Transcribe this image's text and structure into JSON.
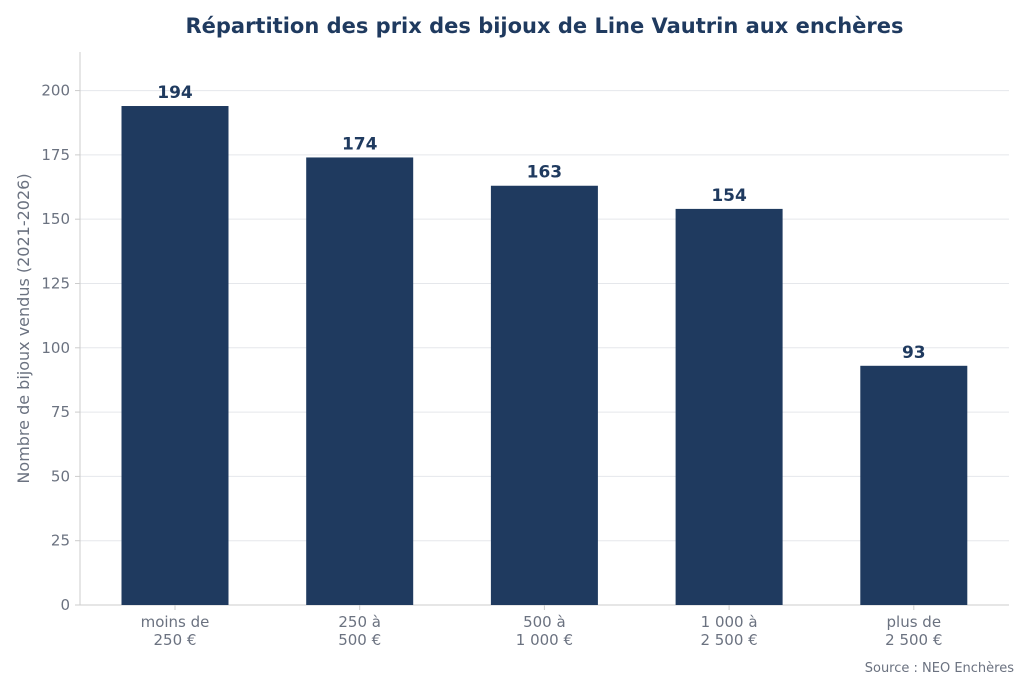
{
  "chart_data": {
    "type": "bar",
    "title": "Répartition des prix des bijoux de Line Vautrin aux enchères",
    "xlabel": "",
    "ylabel": "Nombre de bijoux vendus (2021-2026)",
    "categories": [
      [
        "moins de",
        "250 €"
      ],
      [
        "250 à",
        "500 €"
      ],
      [
        "500 à",
        "1 000 €"
      ],
      [
        "1 000 à",
        "2 500 €"
      ],
      [
        "plus de",
        "2 500 €"
      ]
    ],
    "values": [
      194,
      174,
      163,
      154,
      93
    ],
    "ylim": [
      0,
      215
    ],
    "yticks": [
      0,
      25,
      50,
      75,
      100,
      125,
      150,
      175,
      200
    ],
    "grid": true,
    "legend": "none",
    "colors": {
      "bar": "#1f3a5f",
      "title": "#1f3a5f",
      "value_label": "#1f3a5f",
      "tick": "#6b7280",
      "grid": "#e5e7eb",
      "axis": "#cccccc"
    }
  },
  "footer": {
    "source": "Source : NEO Enchères"
  }
}
